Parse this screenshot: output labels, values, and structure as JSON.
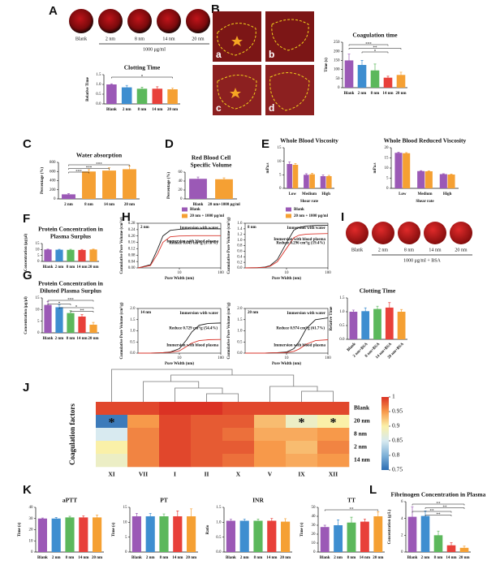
{
  "panels": [
    "A",
    "B",
    "C",
    "D",
    "E",
    "F",
    "G",
    "H",
    "I",
    "J",
    "K",
    "L"
  ],
  "photos": {
    "A": {
      "labels": [
        "Blank",
        "2 nm",
        "8 nm",
        "14 nm",
        "20 nm"
      ],
      "caption": "1000 μg/ml"
    },
    "B": {
      "labels": [
        "a",
        "b",
        "c",
        "d"
      ]
    },
    "I": {
      "labels": [
        "Blank",
        "2 nm",
        "8 nm",
        "14 nm",
        "20 nm"
      ],
      "caption": "1000 μg/ml + BSA"
    }
  },
  "chart_data": [
    {
      "type": "bar",
      "title": "Clotting Time",
      "ylabel": "Relative Time",
      "categories": [
        "Blank",
        "2 nm",
        "8 nm",
        "14 nm",
        "20 nm"
      ],
      "values": [
        1.0,
        0.85,
        0.78,
        0.78,
        0.75
      ],
      "errors": [
        0.03,
        0.1,
        0.08,
        0.1,
        0.06
      ],
      "colors": [
        "#9b59b6",
        "#3e8ed0",
        "#5cb85c",
        "#e8403a",
        "#f5a033"
      ],
      "ylim": [
        0,
        1.5
      ],
      "yticks": [
        {
          "value": 0,
          "label": "0.0"
        },
        0.5,
        {
          "value": 1,
          "label": "1.0"
        },
        1.5
      ],
      "brackets": [
        {
          "label": "*",
          "from": "Blank",
          "to": "20 nm"
        }
      ]
    },
    {
      "type": "bar",
      "title": "Coagulation time",
      "ylabel": "Time (s)",
      "categories": [
        "Blank",
        "2 nm",
        "8 nm",
        "14 nm",
        "20 nm"
      ],
      "values": [
        150,
        125,
        95,
        55,
        70
      ],
      "errors": [
        35,
        25,
        35,
        8,
        15
      ],
      "colors": [
        "#9b59b6",
        "#3e8ed0",
        "#5cb85c",
        "#e8403a",
        "#f5a033"
      ],
      "ylim": [
        0,
        250
      ],
      "yticks": [
        0,
        50,
        100,
        150,
        200,
        250
      ],
      "brackets": [
        {
          "label": "***",
          "from": "Blank",
          "to": "14 nm"
        },
        {
          "label": "**",
          "from": "Blank",
          "to": "20 nm"
        },
        {
          "label": "*",
          "from": "2 nm",
          "to": "14 nm"
        }
      ]
    },
    {
      "type": "bar",
      "title": "Water absorption",
      "ylabel": "Percentage (%)",
      "categories": [
        "2 nm",
        "8 nm",
        "14 nm",
        "20 nm"
      ],
      "values": [
        100,
        600,
        620,
        650
      ],
      "errors": [
        15,
        40,
        60,
        70
      ],
      "colors": [
        "#9b59b6",
        "#f5a033",
        "#f5a033",
        "#f5a033"
      ],
      "ylim": [
        0,
        800
      ],
      "yticks": [
        0,
        200,
        400,
        600,
        800
      ],
      "brackets": [
        {
          "label": "***",
          "from": "2 nm",
          "to": "20 nm"
        },
        {
          "label": "***",
          "from": "2 nm",
          "to": "14 nm"
        },
        {
          "label": "***",
          "from": "2 nm",
          "to": "8 nm"
        }
      ]
    },
    {
      "type": "bar",
      "title": [
        "Red Blood Cell",
        "Specific Volume"
      ],
      "ylabel": "Percentage (%)",
      "categories": [
        "Blank",
        "20 nm+1000 μg/ml"
      ],
      "values": [
        45,
        44
      ],
      "errors": [
        4,
        3
      ],
      "colors": [
        "#9b59b6",
        "#f5a033"
      ],
      "legend": [
        "Blank",
        "20 nm + 1000 μg/ml"
      ],
      "ylim": [
        0,
        60
      ],
      "yticks": [
        0,
        20,
        40,
        60
      ]
    },
    {
      "type": "bar",
      "title": "Whole Blood Viscosity",
      "ylabel": "mPa.s",
      "xlabel": "Shear rate",
      "categories": [
        "Low",
        "Medium",
        "High"
      ],
      "series": [
        {
          "name": "Blank",
          "color": "#9b59b6",
          "values": [
            9,
            5,
            4.5
          ],
          "errors": [
            0.8,
            0.4,
            0.5
          ]
        },
        {
          "name": "20 nm + 1000 μg/ml",
          "color": "#f5a033",
          "values": [
            8.7,
            5.2,
            4.5
          ],
          "errors": [
            0.5,
            0.4,
            0.3
          ]
        }
      ],
      "ylim": [
        0,
        15
      ],
      "yticks": [
        0,
        5,
        10,
        15
      ]
    },
    {
      "type": "bar",
      "title": "Whole Blood Reduced Viscosity",
      "ylabel": "mPa.s",
      "xlabel": "Shear rate",
      "categories": [
        "Low",
        "Medium",
        "High"
      ],
      "series": [
        {
          "color": "#9b59b6",
          "values": [
            17.5,
            8.5,
            7
          ],
          "errors": [
            0.3,
            0.2,
            0.2
          ]
        },
        {
          "color": "#f5a033",
          "values": [
            17.3,
            8.4,
            6.8
          ],
          "errors": [
            0.3,
            0.2,
            0.2
          ]
        }
      ],
      "ylim": [
        0,
        20
      ],
      "yticks": [
        0,
        5,
        10,
        15,
        20
      ]
    },
    {
      "type": "bar",
      "title": [
        "Protein Concentration in",
        "Plasma Surplus"
      ],
      "ylabel": "Concentration (μg/μl)",
      "categories": [
        "Blank",
        "2 nm",
        "8 nm",
        "14 nm",
        "20 nm"
      ],
      "values": [
        10,
        9.8,
        9.7,
        9.6,
        10
      ],
      "errors": [
        0.3,
        0.4,
        0.5,
        0.5,
        0.3
      ],
      "colors": [
        "#9b59b6",
        "#3e8ed0",
        "#5cb85c",
        "#e8403a",
        "#f5a033"
      ],
      "ylim": [
        0,
        15
      ],
      "yticks": [
        0,
        5,
        10,
        15
      ]
    },
    {
      "type": "bar",
      "title": [
        "Protein Concentration in",
        "Diluted Plasma Surplus"
      ],
      "ylabel": "Concentration (μg/μl)",
      "categories": [
        "Blank",
        "2 nm",
        "8 nm",
        "14 nm",
        "20 nm"
      ],
      "values": [
        12,
        11,
        8.5,
        7,
        3.5
      ],
      "errors": [
        1.5,
        1,
        1,
        0.8,
        1
      ],
      "colors": [
        "#9b59b6",
        "#3e8ed0",
        "#5cb85c",
        "#e8403a",
        "#f5a033"
      ],
      "ylim": [
        0,
        15
      ],
      "yticks": [
        0,
        5,
        10,
        15
      ],
      "brackets": [
        {
          "label": "***",
          "from": "Blank",
          "to": "20 nm"
        },
        {
          "label": "*",
          "from": "Blank",
          "to": "8 nm"
        },
        {
          "label": "*",
          "from": "2 nm",
          "to": "20 nm"
        },
        {
          "label": "**",
          "from": "8 nm",
          "to": "20 nm"
        }
      ]
    },
    {
      "type": "line",
      "label": "2 nm",
      "annotation": "Reduce 0.043 cm³/g (17.8%)",
      "xlabel": "Pore Width (nm)",
      "ylabel": "Cumulative Pore Volume (cm³/g)",
      "x": [
        1,
        2,
        3,
        4,
        6,
        10,
        15,
        20,
        30,
        50,
        100
      ],
      "xlog": true,
      "xlim": [
        1,
        100
      ],
      "xticks": [
        10,
        100
      ],
      "series": [
        {
          "name": "Immersion with water",
          "color": "#222222",
          "values": [
            0,
            0.02,
            0.12,
            0.2,
            0.235,
            0.242,
            0.244,
            0.245,
            0.245,
            0.245,
            0.245
          ]
        },
        {
          "name": "Immersion with blood plasma",
          "color": "#d9342b",
          "values": [
            0,
            0.015,
            0.09,
            0.16,
            0.195,
            0.2,
            0.201,
            0.202,
            0.202,
            0.202,
            0.202
          ]
        }
      ],
      "ylim": [
        0,
        0.28
      ],
      "yticks": [
        {
          "value": 0,
          "label": "0.00"
        },
        0.04,
        0.08,
        0.12,
        0.16,
        {
          "value": 0.2,
          "label": "0.20"
        },
        0.24,
        0.28
      ]
    },
    {
      "type": "line",
      "label": "8 nm",
      "annotation": "Reduce 0.296 cm³/g (19.4%)",
      "xlabel": "Pore Width (nm)",
      "ylabel": "Cumulative Pore Volume (cm³/g)",
      "x": [
        1,
        2,
        3,
        4,
        6,
        10,
        15,
        20,
        30,
        50,
        100
      ],
      "xlog": true,
      "xlim": [
        1,
        100
      ],
      "xticks": [
        10,
        100
      ],
      "series": [
        {
          "name": "Immersion with water",
          "color": "#222222",
          "values": [
            0,
            0.01,
            0.03,
            0.08,
            0.3,
            0.9,
            1.35,
            1.45,
            1.5,
            1.52,
            1.53
          ]
        },
        {
          "name": "Immersion with blood plasma",
          "color": "#d9342b",
          "values": [
            0,
            0.01,
            0.02,
            0.06,
            0.22,
            0.7,
            1.08,
            1.17,
            1.21,
            1.22,
            1.23
          ]
        }
      ],
      "ylim": [
        0,
        1.6
      ],
      "yticks": [
        {
          "value": 0,
          "label": "0.0"
        },
        0.2,
        0.4,
        0.6,
        0.8,
        {
          "value": 1,
          "label": "1.0"
        },
        1.2,
        1.4,
        1.6
      ]
    },
    {
      "type": "line",
      "label": "14 nm",
      "annotation": "Reduce 0.729 cm³/g (54.4%)",
      "xlabel": "Pore Width (nm)",
      "ylabel": "Cumulative Pore Volume (cm³/g)",
      "x": [
        1,
        2,
        3,
        4,
        6,
        10,
        15,
        20,
        30,
        50,
        100
      ],
      "xlog": true,
      "xlim": [
        1,
        100
      ],
      "xticks": [
        10,
        100
      ],
      "series": [
        {
          "name": "Immersion with water",
          "color": "#222222",
          "values": [
            0,
            0,
            0.01,
            0.02,
            0.05,
            0.2,
            0.6,
            0.95,
            1.25,
            1.33,
            1.35
          ]
        },
        {
          "name": "Immersion with blood plasma",
          "color": "#d9342b",
          "values": [
            0,
            0,
            0.01,
            0.02,
            0.04,
            0.1,
            0.3,
            0.45,
            0.56,
            0.6,
            0.61
          ]
        }
      ],
      "ylim": [
        0,
        2
      ],
      "yticks": [
        {
          "value": 0,
          "label": "0.0"
        },
        0.5,
        {
          "value": 1,
          "label": "1.0"
        },
        1.5,
        {
          "value": 2,
          "label": "2.0"
        }
      ]
    },
    {
      "type": "line",
      "label": "20 nm",
      "annotation": "Reduce 0.974 cm³/g (61.7%)",
      "xlabel": "Pore Width (nm)",
      "ylabel": "Cumulative Pore Volume (cm³/g)",
      "x": [
        1,
        2,
        3,
        4,
        6,
        10,
        15,
        20,
        30,
        50,
        100
      ],
      "xlog": true,
      "xlim": [
        1,
        100
      ],
      "xticks": [
        10,
        100
      ],
      "series": [
        {
          "name": "Immersion with water",
          "color": "#222222",
          "values": [
            0,
            0,
            0,
            0.01,
            0.02,
            0.05,
            0.2,
            0.5,
            1.1,
            1.5,
            1.58
          ]
        },
        {
          "name": "Immersion with blood plasma",
          "color": "#d9342b",
          "values": [
            0,
            0,
            0,
            0.01,
            0.01,
            0.03,
            0.08,
            0.18,
            0.4,
            0.56,
            0.6
          ]
        }
      ],
      "ylim": [
        0,
        2
      ],
      "yticks": [
        {
          "value": 0,
          "label": "0.0"
        },
        0.5,
        {
          "value": 1,
          "label": "1.0"
        },
        1.5,
        {
          "value": 2,
          "label": "2.0"
        }
      ]
    },
    {
      "type": "bar",
      "title": "Clotting Time",
      "ylabel": "Relative Time",
      "categories": [
        "Blank",
        "2 nm+BSA",
        "8 nm+BSA",
        "14 nm+BSA",
        "20 nm+BSA"
      ],
      "values": [
        1.0,
        1.02,
        1.1,
        1.15,
        1.0
      ],
      "errors": [
        0.06,
        0.12,
        0.1,
        0.18,
        0.08
      ],
      "colors": [
        "#9b59b6",
        "#3e8ed0",
        "#5cb85c",
        "#e8403a",
        "#f5a033"
      ],
      "ylim": [
        0,
        1.5
      ],
      "yticks": [
        {
          "value": 0,
          "label": "0.0"
        },
        0.5,
        {
          "value": 1,
          "label": "1.0"
        },
        1.5
      ]
    },
    {
      "type": "heatmap",
      "ylabel": "Coagulation factors",
      "columns": [
        "XI",
        "VII",
        "I",
        "II",
        "X",
        "V",
        "IX",
        "XII"
      ],
      "rows": [
        "Blank",
        "20 nm",
        "8 nm",
        "2 nm",
        "14 nm"
      ],
      "values": [
        [
          0.99,
          0.99,
          1,
          1,
          0.99,
          0.99,
          0.99,
          0.99
        ],
        [
          0.76,
          0.95,
          0.99,
          0.98,
          0.98,
          0.93,
          0.88,
          0.9
        ],
        [
          0.85,
          0.96,
          0.99,
          0.98,
          0.97,
          0.94,
          0.94,
          0.95
        ],
        [
          0.9,
          0.96,
          0.99,
          0.98,
          0.98,
          0.95,
          0.93,
          0.96
        ],
        [
          0.88,
          0.96,
          0.99,
          0.98,
          0.97,
          0.95,
          0.94,
          0.95
        ]
      ],
      "clim": [
        0.75,
        1
      ],
      "colorscale": [
        "#2c6db3",
        "#7fb1d8",
        "#d8eaf0",
        "#faf0a8",
        "#f7994a",
        "#db3224"
      ],
      "colorbar_ticks": [
        1,
        0.95,
        0.9,
        0.85,
        0.8,
        0.75
      ],
      "stars": [
        {
          "row": "20 nm",
          "col": "XI",
          "label": "*"
        },
        {
          "row": "20 nm",
          "col": "IX",
          "label": "*"
        },
        {
          "row": "20 nm",
          "col": "XII",
          "label": "*"
        }
      ]
    },
    {
      "type": "bar",
      "title": "aPTT",
      "ylabel": "Time (s)",
      "categories": [
        "Blank",
        "2 nm",
        "8 nm",
        "14 nm",
        "20 nm"
      ],
      "values": [
        30,
        30,
        31,
        31,
        31
      ],
      "errors": [
        0.5,
        1,
        1,
        1.5,
        2
      ],
      "colors": [
        "#9b59b6",
        "#3e8ed0",
        "#5cb85c",
        "#e8403a",
        "#f5a033"
      ],
      "ylim": [
        0,
        40
      ],
      "yticks": [
        0,
        10,
        20,
        30,
        40
      ]
    },
    {
      "type": "bar",
      "title": "PT",
      "ylabel": "Time (s)",
      "categories": [
        "Blank",
        "2 nm",
        "8 nm",
        "14 nm",
        "20 nm"
      ],
      "values": [
        12,
        12,
        12,
        12,
        12
      ],
      "errors": [
        1,
        1,
        0.8,
        1.8,
        2.5
      ],
      "colors": [
        "#9b59b6",
        "#3e8ed0",
        "#5cb85c",
        "#e8403a",
        "#f5a033"
      ],
      "ylim": [
        0,
        15
      ],
      "yticks": [
        0,
        5,
        10,
        15
      ]
    },
    {
      "type": "bar",
      "title": "INR",
      "ylabel": "Ratio",
      "categories": [
        "Blank",
        "2 nm",
        "8 nm",
        "14 nm",
        "20 nm"
      ],
      "values": [
        1.05,
        1.05,
        1.05,
        1.05,
        1.02
      ],
      "errors": [
        0.05,
        0.06,
        0.06,
        0.08,
        0.1
      ],
      "colors": [
        "#9b59b6",
        "#3e8ed0",
        "#5cb85c",
        "#e8403a",
        "#f5a033"
      ],
      "ylim": [
        0,
        1.5
      ],
      "yticks": [
        {
          "value": 0,
          "label": "0.0"
        },
        0.5,
        {
          "value": 1,
          "label": "1.0"
        },
        1.5
      ]
    },
    {
      "type": "bar",
      "title": "TT",
      "ylabel": "Time (s)",
      "categories": [
        "Blank",
        "2 nm",
        "8 nm",
        "14 nm",
        "20 nm"
      ],
      "values": [
        28,
        30,
        33,
        34,
        40
      ],
      "errors": [
        2,
        6,
        6,
        3,
        5
      ],
      "colors": [
        "#9b59b6",
        "#3e8ed0",
        "#5cb85c",
        "#e8403a",
        "#f5a033"
      ],
      "ylim": [
        0,
        50
      ],
      "yticks": [
        0,
        10,
        20,
        30,
        40,
        50
      ],
      "brackets": [
        {
          "label": "**",
          "from": "Blank",
          "to": "20 nm"
        }
      ]
    },
    {
      "type": "bar",
      "title": "Fibrinogen Concentration in Plasma",
      "ylabel": "Concentration (g/L)",
      "categories": [
        "Blank",
        "2 nm",
        "8 nm",
        "14 nm",
        "20 nm"
      ],
      "values": [
        4.2,
        4.3,
        2,
        0.8,
        0.5
      ],
      "errors": [
        1.2,
        0.6,
        0.5,
        0.3,
        0.2
      ],
      "colors": [
        "#9b59b6",
        "#3e8ed0",
        "#5cb85c",
        "#e8403a",
        "#f5a033"
      ],
      "ylim": [
        0,
        6
      ],
      "yticks": [
        0,
        2,
        4,
        6
      ],
      "brackets": [
        {
          "label": "**",
          "from": "Blank",
          "to": "20 nm"
        },
        {
          "label": "**",
          "from": "2 nm",
          "to": "20 nm"
        },
        {
          "label": "**",
          "from": "Blank",
          "to": "14 nm"
        },
        {
          "label": "**",
          "from": "2 nm",
          "to": "14 nm"
        }
      ]
    }
  ]
}
